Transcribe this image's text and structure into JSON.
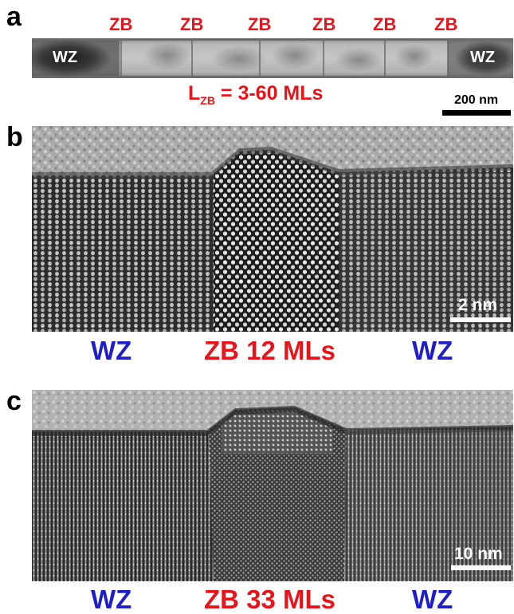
{
  "panel_a": {
    "letter": "a",
    "zb_labels": [
      "ZB",
      "ZB",
      "ZB",
      "ZB",
      "ZB",
      "ZB"
    ],
    "wz_left": "WZ",
    "wz_right": "WZ",
    "length_label_main": "L",
    "length_label_sub": "ZB",
    "length_label_rest": " = 3-60 MLs",
    "scale_bar": "200 nm"
  },
  "panel_b": {
    "letter": "b",
    "scale_bar": "2 nm",
    "label_left": "WZ",
    "label_center": "ZB 12 MLs",
    "label_right": "WZ"
  },
  "panel_c": {
    "letter": "c",
    "scale_bar": "10 nm",
    "label_left": "WZ",
    "label_center": "ZB 33 MLs",
    "label_right": "WZ"
  },
  "colors": {
    "zb_red": "#e8141c",
    "wz_blue": "#1f1fc8"
  }
}
